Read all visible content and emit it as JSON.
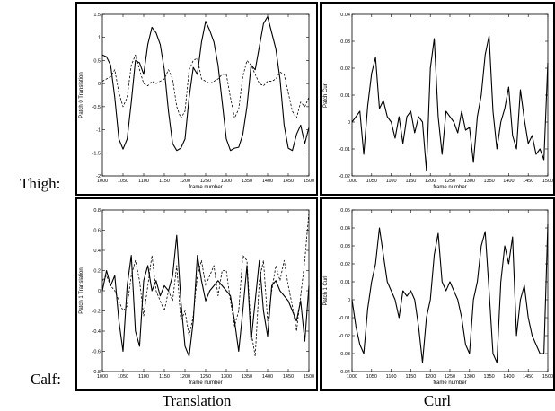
{
  "labels": {
    "rows": [
      "Thigh:",
      "Calf:"
    ],
    "columns": [
      "Translation",
      "Curl"
    ]
  },
  "chart_data": [
    {
      "id": "thigh-translation",
      "type": "line",
      "xlabel": "frame number",
      "ylabel": "Patch 0 Translation",
      "xlim": [
        1000,
        1500
      ],
      "ylim": [
        -2,
        1.5
      ],
      "xticks": [
        1000,
        1050,
        1100,
        1150,
        1200,
        1250,
        1300,
        1350,
        1400,
        1450,
        1500
      ],
      "yticks": [
        -2,
        -1.5,
        -1,
        -0.5,
        0,
        0.5,
        1,
        1.5
      ],
      "ytick_labels": [
        "-2",
        "-1.5",
        "-1",
        "-0.5",
        "0",
        "0.5",
        "1",
        "1.5"
      ],
      "series": [
        {
          "style": "solid",
          "x": [
            1000,
            1010,
            1020,
            1030,
            1040,
            1050,
            1060,
            1070,
            1080,
            1090,
            1100,
            1110,
            1120,
            1130,
            1140,
            1150,
            1160,
            1170,
            1180,
            1190,
            1200,
            1210,
            1220,
            1230,
            1240,
            1250,
            1260,
            1270,
            1280,
            1290,
            1300,
            1310,
            1320,
            1330,
            1340,
            1350,
            1360,
            1370,
            1380,
            1390,
            1400,
            1410,
            1420,
            1430,
            1440,
            1450,
            1460,
            1470,
            1480,
            1490,
            1500
          ],
          "y": [
            0.62,
            0.58,
            0.4,
            -0.3,
            -1.2,
            -1.42,
            -1.2,
            -0.4,
            0.5,
            0.45,
            0.2,
            0.85,
            1.22,
            1.1,
            0.85,
            0.3,
            -0.6,
            -1.3,
            -1.45,
            -1.4,
            -1.2,
            -0.3,
            0.35,
            0.2,
            0.9,
            1.35,
            1.15,
            0.9,
            0.4,
            -0.4,
            -1.2,
            -1.45,
            -1.4,
            -1.38,
            -1.1,
            -0.5,
            0.4,
            0.3,
            0.8,
            1.3,
            1.45,
            1.1,
            0.75,
            0.1,
            -0.9,
            -1.4,
            -1.45,
            -1.1,
            -0.9,
            -1.3,
            -0.95
          ]
        },
        {
          "style": "dashed",
          "x": [
            1000,
            1010,
            1020,
            1030,
            1040,
            1050,
            1060,
            1070,
            1080,
            1090,
            1100,
            1110,
            1120,
            1130,
            1140,
            1150,
            1160,
            1170,
            1180,
            1190,
            1200,
            1210,
            1220,
            1230,
            1240,
            1250,
            1260,
            1270,
            1280,
            1290,
            1300,
            1310,
            1320,
            1330,
            1340,
            1350,
            1360,
            1370,
            1380,
            1390,
            1400,
            1410,
            1420,
            1430,
            1440,
            1450,
            1460,
            1470,
            1480,
            1490,
            1500
          ],
          "y": [
            0.05,
            0.1,
            0.15,
            0.3,
            -0.2,
            -0.5,
            -0.3,
            0.4,
            0.62,
            0.3,
            0.0,
            -0.05,
            0.05,
            0.0,
            0.05,
            0.1,
            0.3,
            0.1,
            -0.5,
            -0.75,
            -0.6,
            0.3,
            0.5,
            0.55,
            0.1,
            0.05,
            0.0,
            0.05,
            0.1,
            0.2,
            0.2,
            -0.3,
            -0.75,
            -0.55,
            0.15,
            0.5,
            0.4,
            0.2,
            0.0,
            -0.05,
            0.05,
            0.05,
            0.1,
            0.25,
            0.2,
            -0.2,
            -0.6,
            -0.75,
            -0.4,
            -0.5,
            -0.3
          ]
        }
      ]
    },
    {
      "id": "thigh-curl",
      "type": "line",
      "xlabel": "frame number",
      "ylabel": "Patch Curl",
      "xlim": [
        1000,
        1500
      ],
      "ylim": [
        -0.02,
        0.04
      ],
      "xticks": [
        1000,
        1050,
        1100,
        1150,
        1200,
        1250,
        1300,
        1350,
        1400,
        1450,
        1500
      ],
      "yticks": [
        -0.02,
        -0.01,
        0,
        0.01,
        0.02,
        0.03,
        0.04
      ],
      "ytick_labels": [
        "-0.02",
        "-0.01",
        "0",
        "0.01",
        "0.02",
        "0.03",
        "0.04"
      ],
      "series": [
        {
          "style": "solid",
          "x": [
            1000,
            1010,
            1020,
            1030,
            1040,
            1050,
            1060,
            1070,
            1080,
            1090,
            1100,
            1110,
            1120,
            1130,
            1140,
            1150,
            1160,
            1170,
            1180,
            1190,
            1200,
            1210,
            1220,
            1230,
            1240,
            1250,
            1260,
            1270,
            1280,
            1290,
            1300,
            1310,
            1320,
            1330,
            1340,
            1350,
            1360,
            1370,
            1380,
            1390,
            1400,
            1410,
            1420,
            1430,
            1440,
            1450,
            1460,
            1470,
            1480,
            1490,
            1500
          ],
          "y": [
            0.0,
            0.002,
            0.004,
            -0.012,
            0.006,
            0.018,
            0.024,
            0.005,
            0.008,
            0.002,
            0.0,
            -0.006,
            0.002,
            -0.008,
            0.002,
            0.004,
            -0.004,
            0.002,
            0.0,
            -0.018,
            0.02,
            0.031,
            0.002,
            -0.012,
            0.004,
            0.002,
            0.0,
            -0.004,
            0.004,
            -0.003,
            -0.002,
            -0.015,
            0.002,
            0.01,
            0.025,
            0.032,
            0.004,
            -0.01,
            0.0,
            0.005,
            0.013,
            -0.005,
            -0.01,
            0.012,
            0.001,
            -0.008,
            -0.005,
            -0.012,
            -0.01,
            -0.014,
            0.022
          ]
        }
      ]
    },
    {
      "id": "calf-translation",
      "type": "line",
      "xlabel": "frame number",
      "ylabel": "Patch 1 Translation",
      "xlim": [
        1000,
        1500
      ],
      "ylim": [
        -0.8,
        0.8
      ],
      "xticks": [
        1000,
        1050,
        1100,
        1150,
        1200,
        1250,
        1300,
        1350,
        1400,
        1450,
        1500
      ],
      "yticks": [
        -0.8,
        -0.6,
        -0.4,
        -0.2,
        0,
        0.2,
        0.4,
        0.6,
        0.8
      ],
      "ytick_labels": [
        "-0.8",
        "-0.6",
        "-0.4",
        "-0.2",
        "0",
        "0.2",
        "0.4",
        "0.6",
        "0.8"
      ],
      "series": [
        {
          "style": "solid",
          "x": [
            1000,
            1010,
            1020,
            1030,
            1040,
            1050,
            1060,
            1070,
            1080,
            1090,
            1100,
            1110,
            1120,
            1130,
            1140,
            1150,
            1160,
            1170,
            1180,
            1190,
            1200,
            1210,
            1220,
            1230,
            1240,
            1250,
            1260,
            1270,
            1280,
            1290,
            1300,
            1310,
            1320,
            1330,
            1340,
            1350,
            1360,
            1370,
            1380,
            1390,
            1400,
            1410,
            1420,
            1430,
            1440,
            1450,
            1460,
            1470,
            1480,
            1490,
            1500
          ],
          "y": [
            0.0,
            0.2,
            0.05,
            0.15,
            -0.3,
            -0.6,
            0.05,
            0.35,
            -0.4,
            -0.55,
            0.1,
            0.25,
            0.0,
            0.1,
            -0.05,
            0.05,
            0.0,
            0.15,
            0.55,
            -0.1,
            -0.55,
            -0.65,
            -0.3,
            0.35,
            0.1,
            -0.1,
            0.0,
            0.05,
            0.1,
            0.05,
            0.0,
            -0.05,
            -0.3,
            -0.6,
            -0.2,
            0.25,
            -0.5,
            -0.1,
            0.3,
            -0.2,
            -0.45,
            0.05,
            0.1,
            0.0,
            -0.05,
            -0.1,
            -0.2,
            -0.3,
            -0.1,
            -0.5,
            0.05
          ]
        },
        {
          "style": "dashed",
          "x": [
            1000,
            1010,
            1020,
            1030,
            1040,
            1050,
            1060,
            1070,
            1080,
            1090,
            1100,
            1110,
            1120,
            1130,
            1140,
            1150,
            1160,
            1170,
            1180,
            1190,
            1200,
            1210,
            1220,
            1230,
            1240,
            1250,
            1260,
            1270,
            1280,
            1290,
            1300,
            1310,
            1320,
            1330,
            1340,
            1350,
            1360,
            1370,
            1380,
            1390,
            1400,
            1410,
            1420,
            1430,
            1440,
            1450,
            1460,
            1470,
            1480,
            1490,
            1500
          ],
          "y": [
            0.1,
            0.15,
            0.05,
            0.0,
            -0.1,
            -0.2,
            -0.15,
            0.15,
            0.3,
            0.1,
            -0.25,
            0.05,
            0.35,
            0.0,
            -0.1,
            -0.2,
            0.0,
            -0.1,
            0.25,
            -0.3,
            -0.2,
            -0.45,
            -0.25,
            0.15,
            0.3,
            0.05,
            0.15,
            0.25,
            -0.05,
            0.2,
            0.2,
            -0.1,
            -0.35,
            -0.2,
            0.35,
            0.3,
            -0.4,
            -0.65,
            0.1,
            0.3,
            -0.3,
            0.0,
            0.25,
            0.1,
            0.3,
            0.05,
            -0.15,
            -0.4,
            -0.05,
            0.3,
            0.78
          ]
        }
      ]
    },
    {
      "id": "calf-curl",
      "type": "line",
      "xlabel": "frame number",
      "ylabel": "Patch 1 Curl",
      "xlim": [
        1000,
        1500
      ],
      "ylim": [
        -0.04,
        0.05
      ],
      "xticks": [
        1000,
        1050,
        1100,
        1150,
        1200,
        1250,
        1300,
        1350,
        1400,
        1450,
        1500
      ],
      "yticks": [
        -0.04,
        -0.03,
        -0.02,
        -0.01,
        0,
        0.01,
        0.02,
        0.03,
        0.04,
        0.05
      ],
      "ytick_labels": [
        "-0.04",
        "-0.03",
        "-0.02",
        "-0.01",
        "0",
        "0.01",
        "0.02",
        "0.03",
        "0.04",
        "0.05"
      ],
      "series": [
        {
          "style": "solid",
          "x": [
            1000,
            1010,
            1020,
            1030,
            1040,
            1050,
            1060,
            1070,
            1080,
            1090,
            1100,
            1110,
            1120,
            1130,
            1140,
            1150,
            1160,
            1170,
            1180,
            1190,
            1200,
            1210,
            1220,
            1230,
            1240,
            1250,
            1260,
            1270,
            1280,
            1290,
            1300,
            1310,
            1320,
            1330,
            1340,
            1350,
            1360,
            1370,
            1380,
            1390,
            1400,
            1410,
            1420,
            1430,
            1440,
            1450,
            1460,
            1470,
            1480,
            1490,
            1500
          ],
          "y": [
            0.0,
            -0.015,
            -0.025,
            -0.03,
            -0.005,
            0.01,
            0.02,
            0.04,
            0.025,
            0.01,
            0.005,
            0.0,
            -0.01,
            0.005,
            0.002,
            0.005,
            0.0,
            -0.015,
            -0.035,
            -0.01,
            0.0,
            0.025,
            0.037,
            0.01,
            0.005,
            0.01,
            0.005,
            0.0,
            -0.01,
            -0.025,
            -0.03,
            0.0,
            0.01,
            0.03,
            0.038,
            0.005,
            -0.03,
            -0.035,
            0.01,
            0.03,
            0.02,
            0.035,
            -0.02,
            0.0,
            0.008,
            -0.01,
            -0.02,
            -0.025,
            -0.03,
            -0.03,
            0.042
          ]
        }
      ]
    }
  ]
}
